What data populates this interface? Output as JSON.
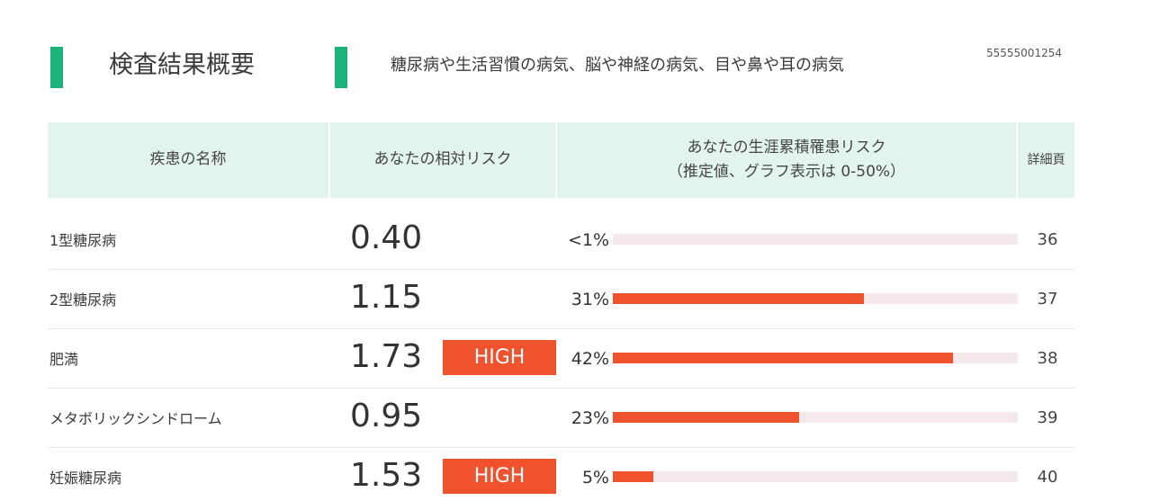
{
  "header": {
    "title": "検査結果概要",
    "subtitle": "糖尿病や生活習慣の病気、脳や神経の病気、目や鼻や耳の病気",
    "report_id": "55555001254",
    "accent_color": "#1bb37a"
  },
  "table": {
    "headers": {
      "disease": "疾患の名称",
      "relative_risk": "あなたの相対リスク",
      "lifetime_risk_line1": "あなたの生涯累積罹患リスク",
      "lifetime_risk_line2": "（推定値、グラフ表示は 0-50%）",
      "page": "詳細頁"
    },
    "bar_scale_max_percent": 50,
    "high_color": "#f0522e",
    "rows": [
      {
        "disease": "1型糖尿病",
        "relative_risk": "0.40",
        "badge": "",
        "lifetime_risk_label": "<1%",
        "lifetime_risk_value": 0,
        "page": "36"
      },
      {
        "disease": "2型糖尿病",
        "relative_risk": "1.15",
        "badge": "",
        "lifetime_risk_label": "31%",
        "lifetime_risk_value": 31,
        "page": "37"
      },
      {
        "disease": "肥満",
        "relative_risk": "1.73",
        "badge": "HIGH",
        "lifetime_risk_label": "42%",
        "lifetime_risk_value": 42,
        "page": "38"
      },
      {
        "disease": "メタボリックシンドローム",
        "relative_risk": "0.95",
        "badge": "",
        "lifetime_risk_label": "23%",
        "lifetime_risk_value": 23,
        "page": "39"
      },
      {
        "disease": "妊娠糖尿病",
        "relative_risk": "1.53",
        "badge": "HIGH",
        "lifetime_risk_label": "5%",
        "lifetime_risk_value": 5,
        "page": "40"
      }
    ]
  }
}
